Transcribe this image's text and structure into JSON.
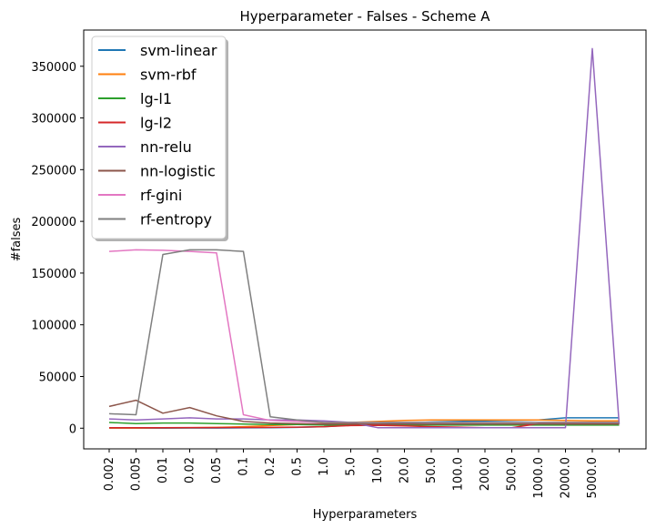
{
  "chart_data": {
    "type": "line",
    "title": "Hyperparameter - Falses - Scheme A",
    "xlabel": "Hyperparameters",
    "ylabel": "#falses",
    "categories": [
      "0.002",
      "0.005",
      "0.01",
      "0.02",
      "0.05",
      "0.1",
      "0.2",
      "0.5",
      "1.0",
      "5.0",
      "10.0",
      "20.0",
      "50.0",
      "100.0",
      "200.0",
      "500.0",
      "1000.0",
      "2000.0",
      "5000.0",
      ""
    ],
    "ylim": [
      -20000,
      385000
    ],
    "yticks": [
      0,
      50000,
      100000,
      150000,
      200000,
      250000,
      300000,
      350000
    ],
    "grid": false,
    "legend": {
      "placement": "top-left",
      "shadow": true
    },
    "series": [
      {
        "name": "svm-linear",
        "color": "#1f77b4",
        "values": [
          100,
          100,
          100,
          200,
          200,
          300,
          400,
          800,
          1500,
          3000,
          4000,
          5000,
          6000,
          6500,
          7000,
          7500,
          8000,
          10000,
          10000,
          10000
        ]
      },
      {
        "name": "svm-rbf",
        "color": "#ff7f0e",
        "values": [
          200,
          200,
          300,
          500,
          800,
          1500,
          2500,
          3500,
          4500,
          5500,
          6500,
          7500,
          8000,
          8000,
          8000,
          8000,
          8000,
          7500,
          7000,
          7000
        ]
      },
      {
        "name": "lg-l1",
        "color": "#2ca02c",
        "values": [
          5500,
          4500,
          5000,
          5000,
          4500,
          4000,
          3500,
          3500,
          3000,
          3000,
          3000,
          3000,
          3000,
          3000,
          3000,
          3000,
          3000,
          3000,
          3000,
          3000
        ]
      },
      {
        "name": "lg-l2",
        "color": "#d62728",
        "values": [
          500,
          500,
          500,
          600,
          600,
          700,
          800,
          1000,
          1500,
          2500,
          2800,
          2200,
          1500,
          1000,
          500,
          500,
          4500,
          4500,
          4500,
          4500
        ]
      },
      {
        "name": "nn-relu",
        "color": "#9467bd",
        "values": [
          9000,
          8000,
          9000,
          10000,
          9000,
          9000,
          8000,
          8000,
          7000,
          5500,
          500,
          500,
          500,
          500,
          500,
          500,
          500,
          500,
          367000,
          4000
        ]
      },
      {
        "name": "nn-logistic",
        "color": "#8c564b",
        "values": [
          21000,
          27000,
          14500,
          20000,
          12000,
          6500,
          5000,
          4500,
          4000,
          4000,
          4000,
          4000,
          4000,
          4000,
          4000,
          4000,
          4000,
          4000,
          4000,
          4000
        ]
      },
      {
        "name": "rf-gini",
        "color": "#e377c2",
        "values": [
          171000,
          172500,
          172000,
          171000,
          169500,
          13000,
          7500,
          6500,
          5500,
          5500,
          5500,
          5500,
          5500,
          5500,
          5500,
          5500,
          5500,
          5500,
          5500,
          5500
        ]
      },
      {
        "name": "rf-entropy",
        "color": "#7f7f7f",
        "values": [
          14000,
          13000,
          168000,
          172500,
          172500,
          171000,
          11000,
          8000,
          5500,
          5500,
          5500,
          5500,
          5500,
          5500,
          5500,
          5500,
          5500,
          5500,
          5500,
          5500
        ]
      }
    ]
  }
}
